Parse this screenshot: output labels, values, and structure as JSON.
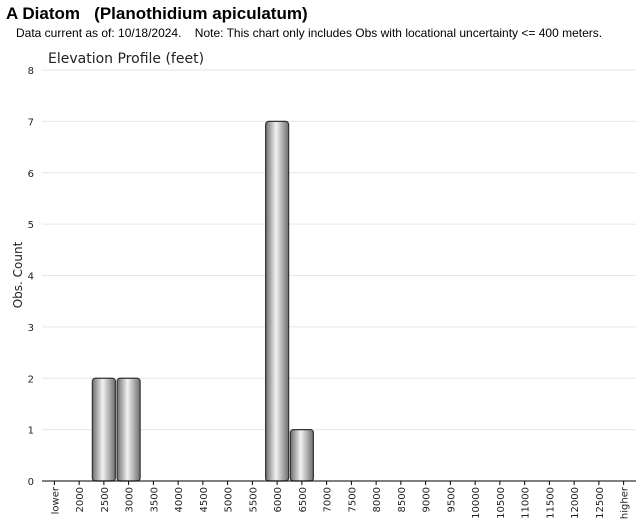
{
  "header": {
    "title": "A Diatom   (Planothidium apiculatum)",
    "note": "Data current as of: 10/18/2024.    Note: This chart only includes Obs with locational uncertainty <= 400 meters."
  },
  "chart_data": {
    "type": "bar",
    "title": "Elevation Profile (feet)",
    "xlabel": "",
    "ylabel": "Obs. Count",
    "ylim": [
      0,
      8
    ],
    "yticks": [
      0,
      1,
      2,
      3,
      4,
      5,
      6,
      7,
      8
    ],
    "grid": true,
    "categories": [
      "lower",
      "2000",
      "2500",
      "3000",
      "3500",
      "4000",
      "4500",
      "5000",
      "5500",
      "6000",
      "6500",
      "7000",
      "7500",
      "8000",
      "8500",
      "9000",
      "9500",
      "10000",
      "10500",
      "11000",
      "11500",
      "12000",
      "12500",
      "higher"
    ],
    "values": [
      0,
      0,
      2,
      2,
      0,
      0,
      0,
      0,
      0,
      7,
      1,
      0,
      0,
      0,
      0,
      0,
      0,
      0,
      0,
      0,
      0,
      0,
      0,
      0
    ],
    "colors": {
      "bar_light": "#f2f2f2",
      "bar_dark": "#6e6e6e",
      "bar_stroke": "#333333",
      "grid": "#e6e6e6",
      "axis": "#000000"
    }
  }
}
